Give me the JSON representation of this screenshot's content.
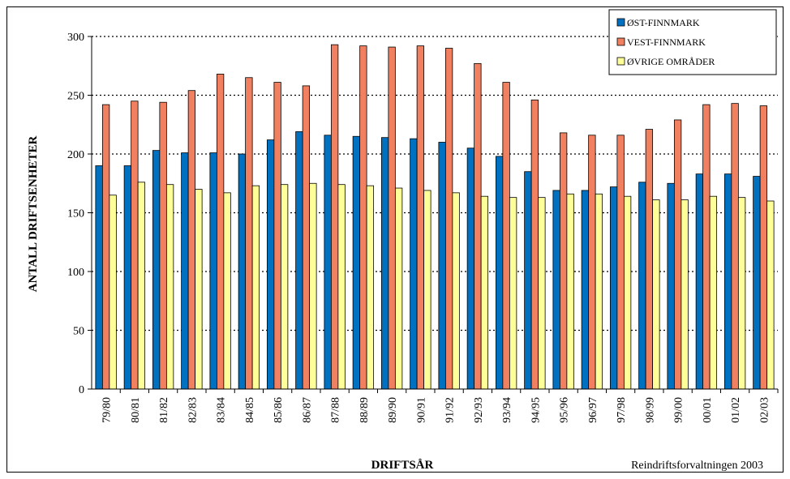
{
  "chart_data": {
    "type": "bar",
    "title": "",
    "xlabel": "DRIFTSÅR",
    "ylabel": "ANTALL DRIFTSENHETER",
    "source": "Reindriftsforvaltningen 2003",
    "ylim": [
      0,
      300
    ],
    "yticks": [
      0,
      50,
      100,
      150,
      200,
      250,
      300
    ],
    "grid": true,
    "legend_position": "top-right",
    "categories": [
      "79/80",
      "80/81",
      "81/82",
      "82/83",
      "83/84",
      "84/85",
      "85/86",
      "86/87",
      "87/88",
      "88/89",
      "89/90",
      "90/91",
      "91/92",
      "92/93",
      "93/94",
      "94/95",
      "95/96",
      "96/97",
      "97/98",
      "98/99",
      "99/00",
      "00/01",
      "01/02",
      "02/03"
    ],
    "series": [
      {
        "name": "ØST-FINNMARK",
        "color": "#0070c0",
        "values": [
          190,
          190,
          203,
          201,
          201,
          200,
          212,
          219,
          216,
          215,
          214,
          213,
          210,
          205,
          198,
          185,
          169,
          169,
          172,
          176,
          175,
          183,
          183,
          181
        ]
      },
      {
        "name": "VEST-FINNMARK",
        "color": "#f08060",
        "values": [
          242,
          245,
          244,
          254,
          268,
          265,
          261,
          258,
          293,
          292,
          291,
          292,
          290,
          277,
          261,
          246,
          218,
          216,
          216,
          221,
          229,
          242,
          243,
          241
        ]
      },
      {
        "name": "ØVRIGE OMRÅDER",
        "color": "#ffff99",
        "values": [
          165,
          176,
          174,
          170,
          167,
          173,
          174,
          175,
          174,
          173,
          171,
          169,
          167,
          164,
          163,
          163,
          166,
          166,
          164,
          161,
          161,
          164,
          163,
          160
        ]
      }
    ]
  }
}
